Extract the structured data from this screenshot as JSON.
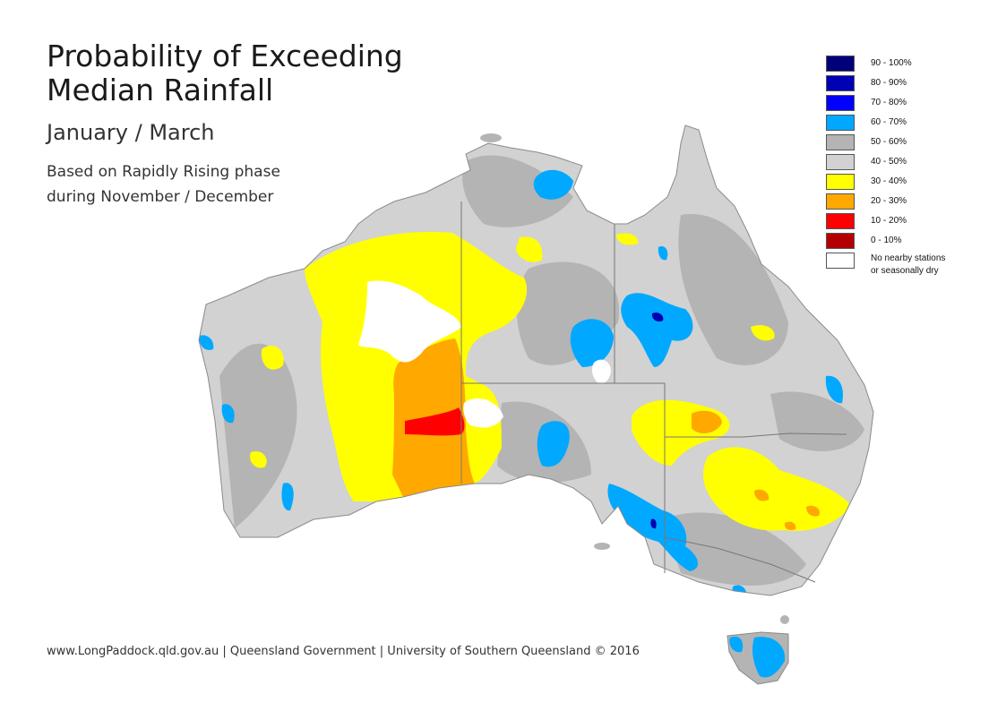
{
  "title": {
    "line1": "Probability of Exceeding",
    "line2": "Median Rainfall"
  },
  "period": "January / March",
  "basis": {
    "line1": "Based on Rapidly Rising phase",
    "line2": "during November / December"
  },
  "footer": "www.LongPaddock.qld.gov.au | Queensland Government | University of Southern Queensland © 2016",
  "legend": [
    {
      "label": "90 - 100%",
      "color": "#00007a"
    },
    {
      "label": "80 - 90%",
      "color": "#0000b4"
    },
    {
      "label": "70 - 80%",
      "color": "#0000ff"
    },
    {
      "label": "60 - 70%",
      "color": "#00a8ff"
    },
    {
      "label": "50 - 60%",
      "color": "#b4b4b4"
    },
    {
      "label": "40 - 50%",
      "color": "#d2d2d2"
    },
    {
      "label": "30 - 40%",
      "color": "#ffff00"
    },
    {
      "label": "20 - 30%",
      "color": "#ffa800"
    },
    {
      "label": "10 - 20%",
      "color": "#ff0000"
    },
    {
      "label": "0 - 10%",
      "color": "#b40000"
    },
    {
      "label": "No nearby stations",
      "label2": "or seasonally dry",
      "color": "#ffffff"
    }
  ]
}
